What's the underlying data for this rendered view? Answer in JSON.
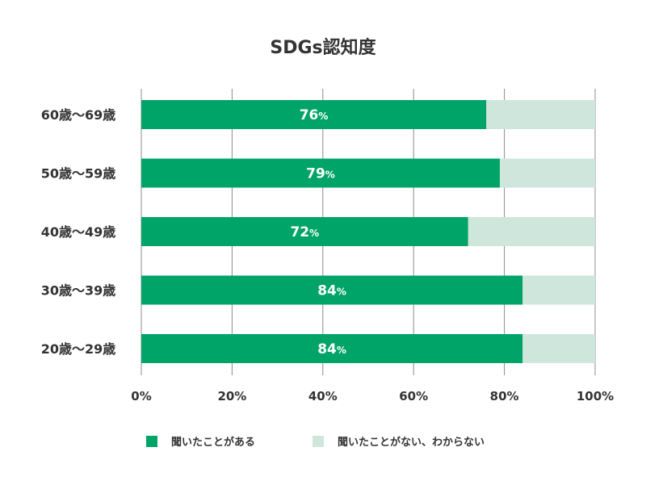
{
  "colors": {
    "heard": "#00a469",
    "not_heard": "#cfe6dd",
    "text": "#333333",
    "grid": "#8c8c8c"
  },
  "chart_data": {
    "type": "bar",
    "orientation": "horizontal",
    "stacked": true,
    "title": "SDGs認知度",
    "categories": [
      "60歳〜69歳",
      "50歳〜59歳",
      "40歳〜49歳",
      "30歳〜39歳",
      "20歳〜29歳"
    ],
    "series": [
      {
        "name": "聞いたことがある",
        "values": [
          76,
          79,
          72,
          84,
          84
        ]
      },
      {
        "name": "聞いたことがない、わからない",
        "values": [
          24,
          21,
          28,
          16,
          16
        ]
      }
    ],
    "value_unit": "%",
    "xlim": [
      0,
      100
    ],
    "xticks": [
      "0%",
      "20%",
      "40%",
      "60%",
      "80%",
      "100%"
    ],
    "xlabel": "",
    "ylabel": "",
    "grid": true,
    "legend": "bottom"
  }
}
